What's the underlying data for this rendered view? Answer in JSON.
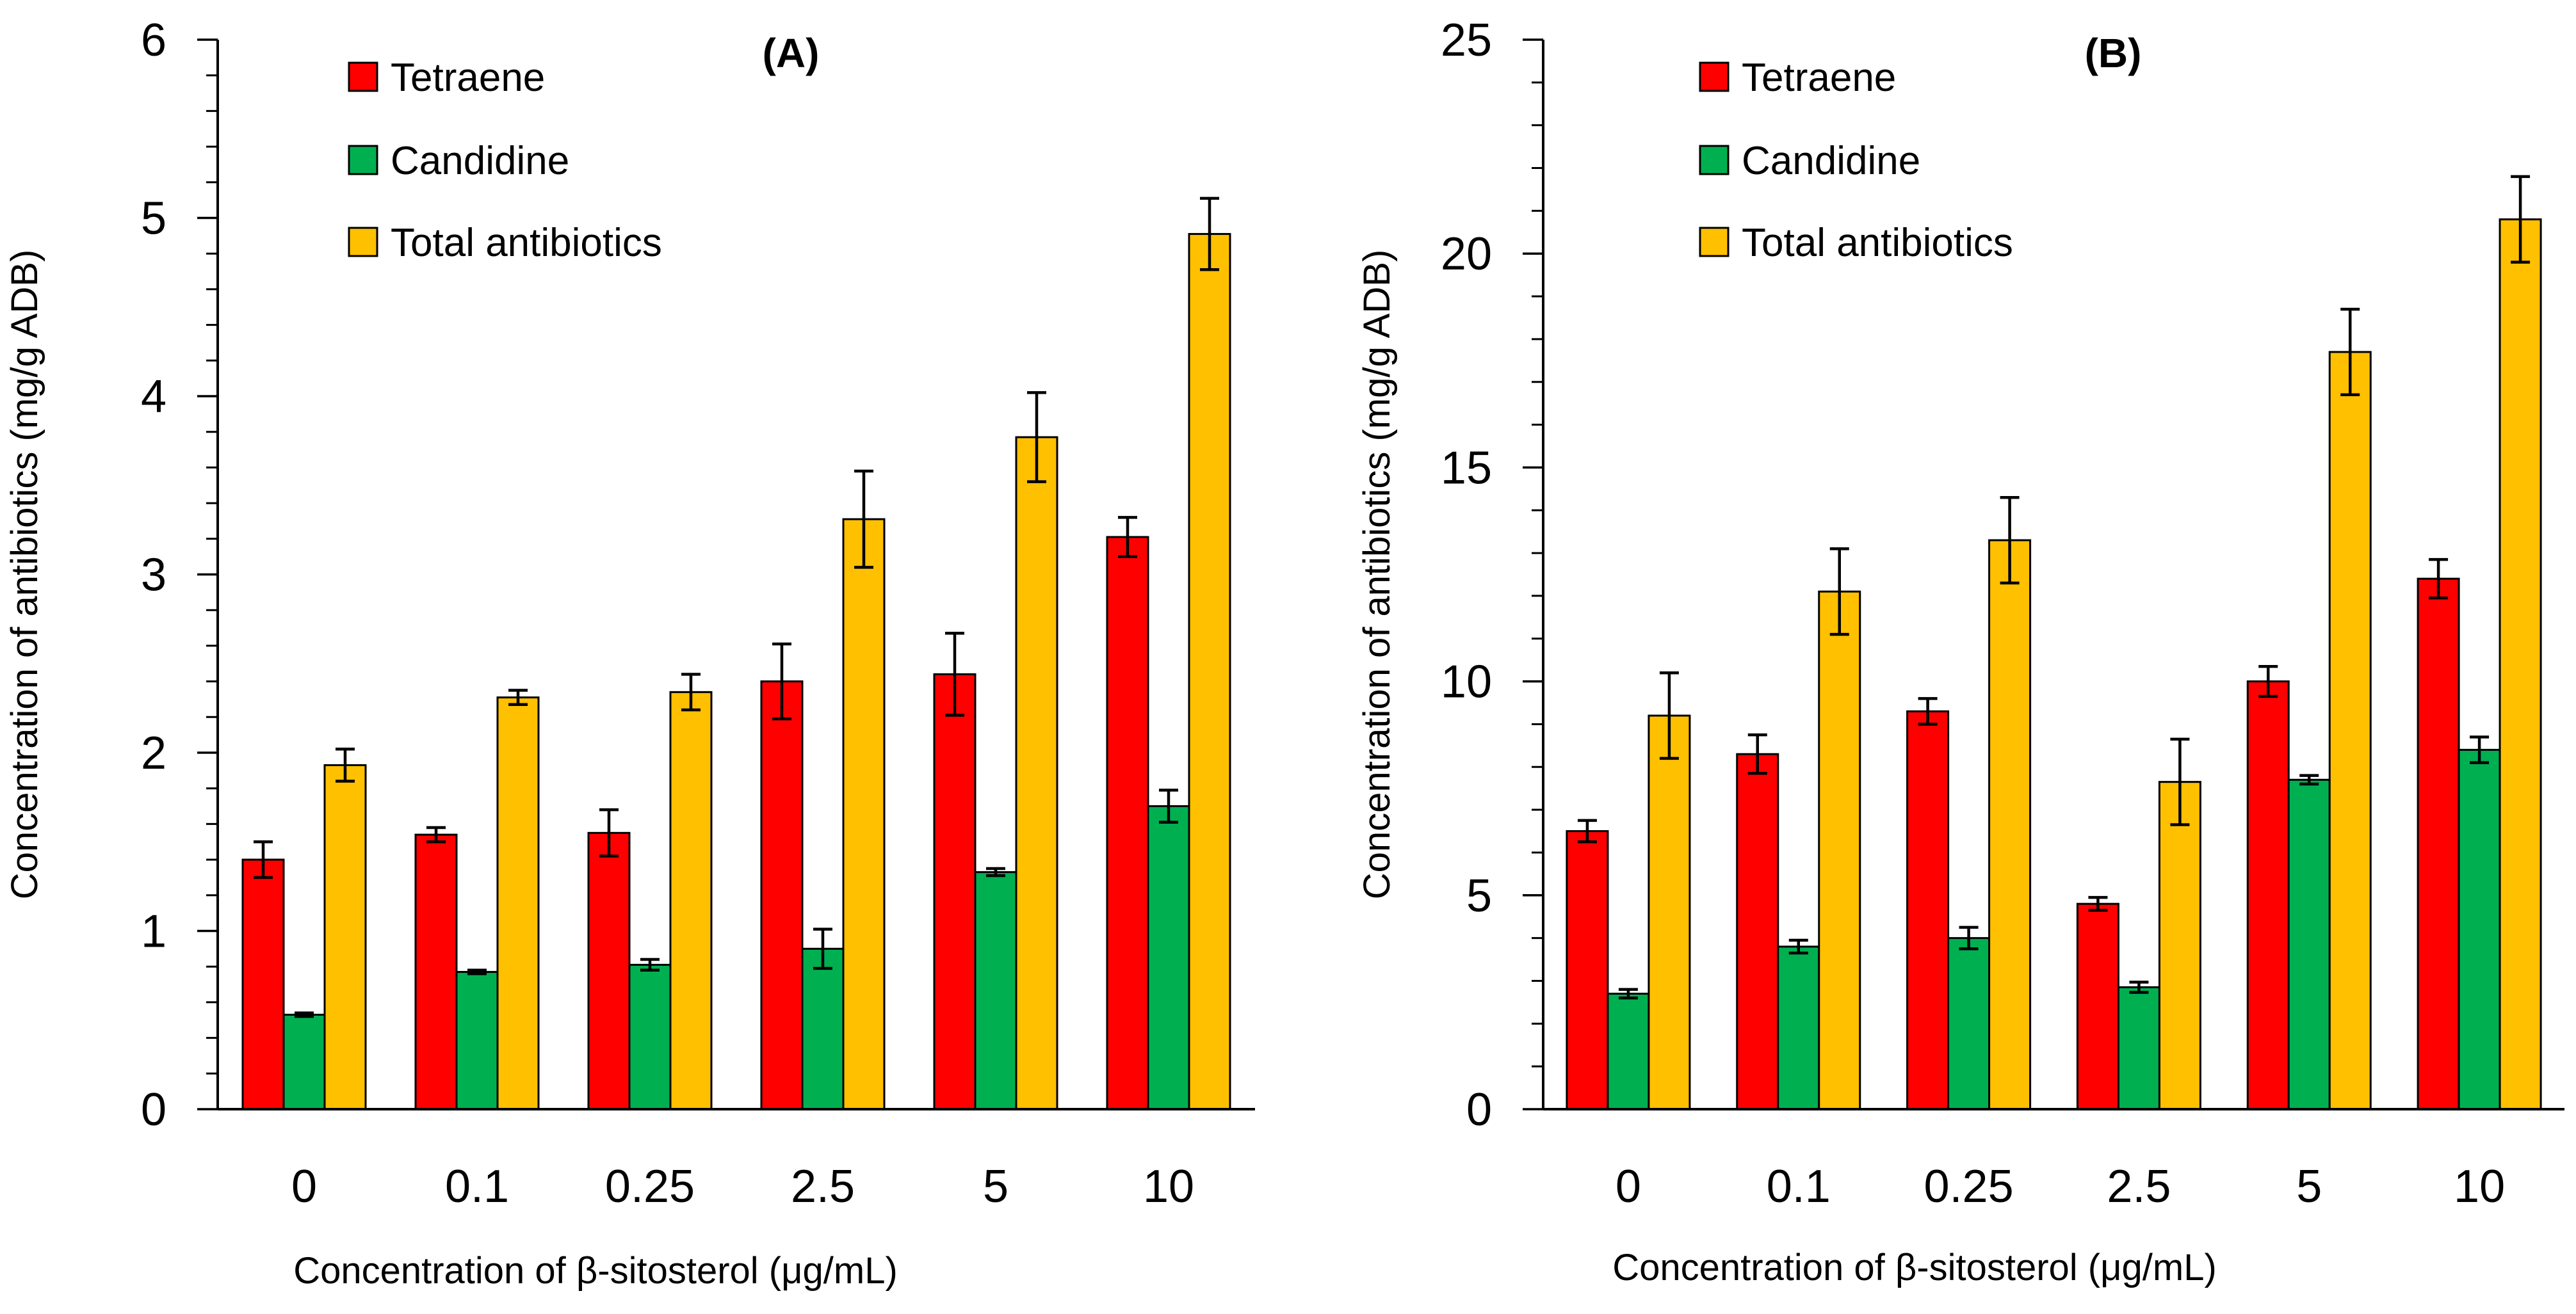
{
  "chart_data": [
    {
      "panel": "A",
      "type": "bar",
      "title": "(A)",
      "xlabel": "Concentration of β-sitosterol (μg/mL)",
      "ylabel": "Concentration of antibiotics (mg/g ADB)",
      "ylim": [
        0,
        6
      ],
      "yticks": [
        "0",
        "1",
        "2",
        "3",
        "4",
        "5",
        "6"
      ],
      "grid": false,
      "legend_position": "top-left",
      "categories": [
        "0",
        "0.1",
        "0.25",
        "2.5",
        "5",
        "10"
      ],
      "series": [
        {
          "name": "Tetraene",
          "color": "#FF0000",
          "values": [
            1.4,
            1.54,
            1.55,
            2.4,
            2.44,
            3.21
          ],
          "errors": [
            0.1,
            0.04,
            0.13,
            0.21,
            0.23,
            0.11
          ]
        },
        {
          "name": "Candidine",
          "color": "#00B050",
          "values": [
            0.53,
            0.77,
            0.81,
            0.9,
            1.33,
            1.7
          ],
          "errors": [
            0.01,
            0.01,
            0.03,
            0.11,
            0.02,
            0.09
          ]
        },
        {
          "name": "Total antibiotics",
          "color": "#FFC000",
          "values": [
            1.93,
            2.31,
            2.34,
            3.31,
            3.77,
            4.91
          ],
          "errors": [
            0.09,
            0.04,
            0.1,
            0.27,
            0.25,
            0.2
          ]
        }
      ]
    },
    {
      "panel": "B",
      "type": "bar",
      "title": "(B)",
      "xlabel": "Concentration of β-sitosterol (μg/mL)",
      "ylabel": "Concentration of antibiotics (mg/g ADB)",
      "ylim": [
        0,
        25
      ],
      "yticks": [
        "0",
        "5",
        "10",
        "15",
        "20",
        "25"
      ],
      "grid": false,
      "legend_position": "top-left",
      "categories": [
        "0",
        "0.1",
        "0.25",
        "2.5",
        "5",
        "10"
      ],
      "series": [
        {
          "name": "Tetraene",
          "color": "#FF0000",
          "values": [
            6.5,
            8.3,
            9.3,
            4.8,
            10.0,
            12.4
          ],
          "errors": [
            0.25,
            0.45,
            0.3,
            0.15,
            0.35,
            0.45
          ]
        },
        {
          "name": "Candidine",
          "color": "#00B050",
          "values": [
            2.7,
            3.8,
            4.0,
            2.85,
            7.7,
            8.4
          ],
          "errors": [
            0.1,
            0.15,
            0.25,
            0.12,
            0.1,
            0.3
          ]
        },
        {
          "name": "Total antibiotics",
          "color": "#FFC000",
          "values": [
            9.2,
            12.1,
            13.3,
            7.65,
            17.7,
            20.8
          ],
          "errors": [
            1.0,
            1.0,
            1.0,
            1.0,
            1.0,
            1.0
          ]
        }
      ]
    }
  ]
}
